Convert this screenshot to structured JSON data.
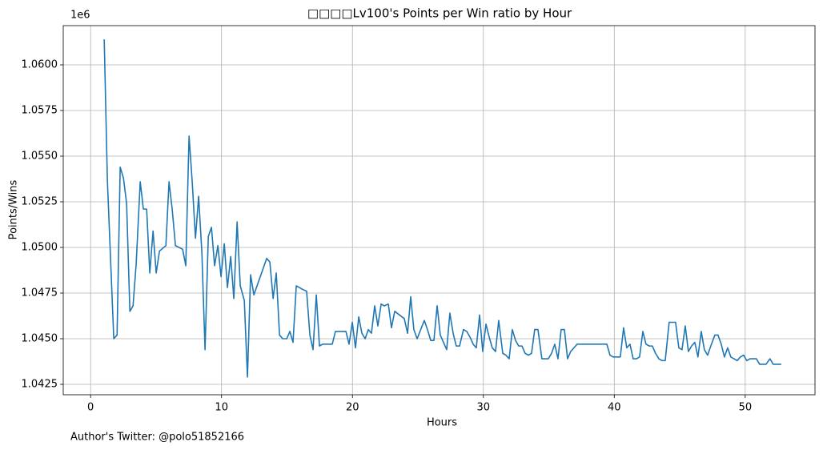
{
  "chart_data": {
    "type": "line",
    "title": "□□□□Lv100's Points per Win ratio by Hour",
    "x_label": "Hours",
    "y_label": "Points/Wins",
    "y_offset": "1e6",
    "footer": "Author's Twitter: @polo51852166",
    "grid": true,
    "xlim": [
      -2.09,
      55.33
    ],
    "ylim": [
      1.04193,
      1.06215
    ],
    "xticks": [
      0,
      10,
      20,
      30,
      40,
      50
    ],
    "yticks": [
      {
        "value": 1.0425,
        "label": "1.0425"
      },
      {
        "value": 1.045,
        "label": "1.0450"
      },
      {
        "value": 1.0475,
        "label": "1.0475"
      },
      {
        "value": 1.05,
        "label": "1.0500"
      },
      {
        "value": 1.0525,
        "label": "1.0525"
      },
      {
        "value": 1.055,
        "label": "1.0550"
      },
      {
        "value": 1.0575,
        "label": "1.0575"
      },
      {
        "value": 1.06,
        "label": "1.0600"
      }
    ],
    "series": [
      {
        "name": "Points/Wins",
        "color": "#1f77b4",
        "x": [
          1.04,
          1.28,
          1.77,
          2.02,
          2.26,
          2.51,
          2.75,
          3.0,
          3.24,
          3.48,
          3.79,
          4.03,
          4.28,
          4.52,
          4.77,
          5.01,
          5.26,
          5.75,
          5.99,
          6.23,
          6.48,
          7.03,
          7.27,
          7.52,
          7.76,
          8.01,
          8.25,
          8.5,
          8.74,
          8.99,
          9.23,
          9.47,
          9.72,
          9.96,
          10.21,
          10.45,
          10.7,
          10.94,
          11.19,
          11.43,
          11.74,
          11.98,
          12.22,
          12.47,
          13.45,
          13.69,
          13.94,
          14.18,
          14.43,
          14.67,
          14.98,
          15.22,
          15.46,
          15.71,
          16.2,
          16.5,
          16.75,
          16.99,
          17.24,
          17.48,
          17.73,
          18.46,
          18.7,
          19.5,
          19.74,
          19.99,
          20.23,
          20.48,
          20.72,
          20.97,
          21.21,
          21.45,
          21.7,
          21.94,
          22.19,
          22.43,
          22.74,
          22.98,
          23.23,
          23.96,
          24.21,
          24.45,
          24.69,
          24.94,
          25.49,
          25.73,
          25.98,
          26.22,
          26.47,
          26.71,
          27.2,
          27.44,
          27.69,
          27.93,
          28.18,
          28.48,
          28.73,
          28.97,
          29.22,
          29.46,
          29.71,
          29.95,
          30.2,
          30.44,
          30.68,
          30.93,
          31.17,
          31.48,
          31.72,
          31.97,
          32.21,
          32.46,
          32.7,
          32.95,
          33.19,
          33.44,
          33.68,
          33.92,
          34.17,
          34.47,
          34.72,
          34.96,
          35.21,
          35.45,
          35.7,
          35.94,
          36.19,
          36.43,
          36.67,
          37.16,
          39.43,
          39.67,
          39.91,
          40.46,
          40.71,
          40.95,
          41.2,
          41.44,
          41.69,
          41.93,
          42.18,
          42.42,
          42.67,
          42.91,
          43.15,
          43.4,
          43.64,
          43.89,
          44.19,
          44.44,
          44.68,
          44.93,
          45.17,
          45.42,
          45.66,
          45.9,
          46.15,
          46.39,
          46.64,
          46.88,
          47.13,
          47.37,
          47.68,
          47.92,
          48.17,
          48.41,
          48.66,
          48.9,
          49.14,
          49.39,
          49.63,
          49.88,
          50.12,
          50.37,
          50.61,
          50.86,
          51.1,
          51.34,
          51.59,
          51.89,
          52.14,
          52.38,
          52.75
        ],
        "values": [
          1.0614,
          1.0537,
          1.045,
          1.0452,
          1.0544,
          1.0538,
          1.0524,
          1.0465,
          1.0468,
          1.0491,
          1.0536,
          1.0521,
          1.0521,
          1.0486,
          1.0509,
          1.0486,
          1.0498,
          1.0501,
          1.0536,
          1.0521,
          1.0501,
          1.0499,
          1.049,
          1.0561,
          1.0536,
          1.0505,
          1.0528,
          1.0497,
          1.0444,
          1.0506,
          1.0511,
          1.049,
          1.0501,
          1.0484,
          1.0502,
          1.0478,
          1.0495,
          1.0472,
          1.0514,
          1.0479,
          1.0471,
          1.0429,
          1.0485,
          1.0474,
          1.0494,
          1.0492,
          1.0472,
          1.0486,
          1.0452,
          1.045,
          1.045,
          1.0454,
          1.0448,
          1.0479,
          1.0477,
          1.0476,
          1.0452,
          1.0444,
          1.0474,
          1.0446,
          1.0447,
          1.0447,
          1.0454,
          1.0454,
          1.0447,
          1.0459,
          1.0445,
          1.0462,
          1.0453,
          1.045,
          1.0455,
          1.0453,
          1.0468,
          1.0457,
          1.0469,
          1.0468,
          1.0469,
          1.0456,
          1.0465,
          1.0461,
          1.0453,
          1.0473,
          1.0455,
          1.045,
          1.046,
          1.0455,
          1.0449,
          1.0449,
          1.0468,
          1.0452,
          1.0444,
          1.0464,
          1.0453,
          1.0446,
          1.0446,
          1.0455,
          1.0454,
          1.0451,
          1.0447,
          1.0445,
          1.0463,
          1.0443,
          1.0458,
          1.0451,
          1.0445,
          1.0443,
          1.046,
          1.0442,
          1.0441,
          1.0439,
          1.0455,
          1.0449,
          1.0446,
          1.0446,
          1.0442,
          1.0441,
          1.0442,
          1.0455,
          1.0455,
          1.0439,
          1.0439,
          1.0439,
          1.0442,
          1.0447,
          1.0439,
          1.0455,
          1.0455,
          1.0439,
          1.0443,
          1.0447,
          1.0447,
          1.0441,
          1.044,
          1.044,
          1.0456,
          1.0445,
          1.0447,
          1.0439,
          1.0439,
          1.044,
          1.0454,
          1.0447,
          1.0446,
          1.0446,
          1.0442,
          1.0439,
          1.0438,
          1.0438,
          1.0459,
          1.0459,
          1.0459,
          1.0445,
          1.0444,
          1.0457,
          1.0443,
          1.0446,
          1.0448,
          1.044,
          1.0454,
          1.0444,
          1.0441,
          1.0446,
          1.0452,
          1.0452,
          1.0447,
          1.044,
          1.0445,
          1.044,
          1.0439,
          1.0438,
          1.044,
          1.0441,
          1.0438,
          1.0439,
          1.0439,
          1.0439,
          1.0436,
          1.0436,
          1.0436,
          1.0439,
          1.0436,
          1.0436,
          1.0436
        ]
      }
    ]
  }
}
